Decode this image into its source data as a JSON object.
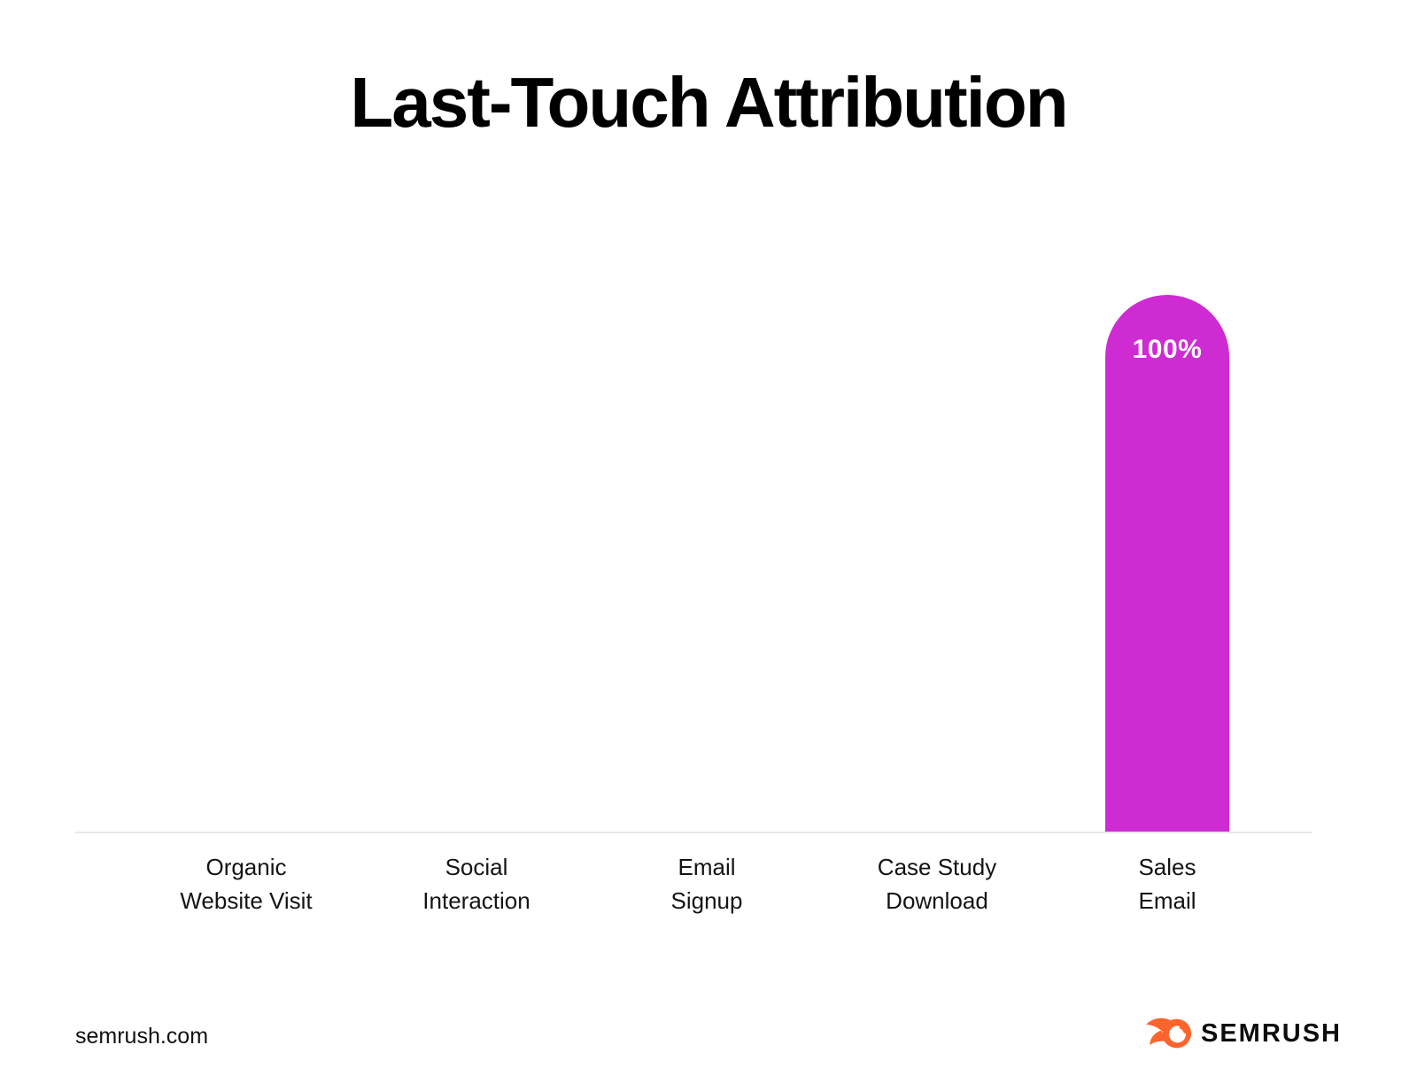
{
  "title": "Last-Touch Attribution",
  "chart_data": {
    "type": "bar",
    "title": "Last-Touch Attribution",
    "categories": [
      "Organic Website Visit",
      "Social Interaction",
      "Email Signup",
      "Case Study Download",
      "Sales Email"
    ],
    "categories_display": [
      "Organic\nWebsite Visit",
      "Social\nInteraction",
      "Email\nSignup",
      "Case Study\nDownload",
      "Sales\nEmail"
    ],
    "values": [
      0,
      0,
      0,
      0,
      100
    ],
    "value_labels": [
      "",
      "",
      "",
      "",
      "100%"
    ],
    "unit": "%",
    "ylim": [
      0,
      100
    ],
    "grid": false,
    "legend": false,
    "bar_color": "#CE2BD2",
    "value_label_color": "#FFFFFF",
    "axis_line_color": "#E7E7E7"
  },
  "footer": {
    "source": "semrush.com",
    "brand": "SEMRUSH",
    "brand_color": "#FF642D"
  }
}
